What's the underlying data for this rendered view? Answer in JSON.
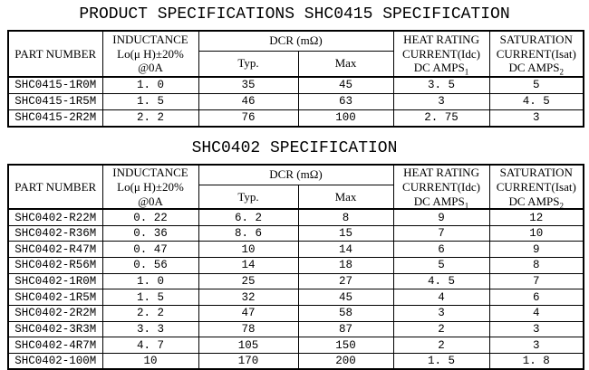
{
  "tables": [
    {
      "title": "PRODUCT SPECIFICATIONS SHC0415 SPECIFICATION",
      "headers": {
        "part_number": "PART NUMBER",
        "inductance_lines": [
          "INDUCTANCE",
          "Lo(μ H)±20%",
          "@0A"
        ],
        "dcr": "DCR (mΩ)",
        "typ": "Typ.",
        "max": "Max",
        "heat_lines": [
          "HEAT RATING",
          "CURRENT(Idc)"
        ],
        "heat_amps": "DC AMPS",
        "heat_amps_sub": "1",
        "sat_lines": [
          "SATURATION",
          "CURRENT(Isat)"
        ],
        "sat_amps": "DC AMPS",
        "sat_amps_sub": "2"
      },
      "rows": [
        [
          "SHC0415-1R0M",
          "1. 0",
          "35",
          "45",
          "3. 5",
          "5"
        ],
        [
          "SHC0415-1R5M",
          "1. 5",
          "46",
          "63",
          "3",
          "4. 5"
        ],
        [
          "SHC0415-2R2M",
          "2. 2",
          "76",
          "100",
          "2. 75",
          "3"
        ]
      ]
    },
    {
      "title": "SHC0402 SPECIFICATION",
      "headers": {
        "part_number": "PART NUMBER",
        "inductance_lines": [
          "INDUCTANCE",
          "Lo(μ H)±20%",
          "@0A"
        ],
        "dcr": "DCR (mΩ)",
        "typ": "Typ.",
        "max": "Max",
        "heat_lines": [
          "HEAT RATING",
          "CURRENT(Idc)"
        ],
        "heat_amps": "DC AMPS",
        "heat_amps_sub": "1",
        "sat_lines": [
          "SATURATION",
          "CURRENT(Isat)"
        ],
        "sat_amps": "DC AMPS",
        "sat_amps_sub": "2"
      },
      "rows": [
        [
          "SHC0402-R22M",
          "0. 22",
          "6. 2",
          "8",
          "9",
          "12"
        ],
        [
          "SHC0402-R36M",
          "0. 36",
          "8. 6",
          "15",
          "7",
          "10"
        ],
        [
          "SHC0402-R47M",
          "0. 47",
          "10",
          "14",
          "6",
          "9"
        ],
        [
          "SHC0402-R56M",
          "0. 56",
          "14",
          "18",
          "5",
          "8"
        ],
        [
          "SHC0402-1R0M",
          "1. 0",
          "25",
          "27",
          "4. 5",
          "7"
        ],
        [
          "SHC0402-1R5M",
          "1. 5",
          "32",
          "45",
          "4",
          "6"
        ],
        [
          "SHC0402-2R2M",
          "2. 2",
          "47",
          "58",
          "3",
          "4"
        ],
        [
          "SHC0402-3R3M",
          "3. 3",
          "78",
          "87",
          "2",
          "3"
        ],
        [
          "SHC0402-4R7M",
          "4. 7",
          "105",
          "150",
          "2",
          "3"
        ],
        [
          "SHC0402-100M",
          "10",
          "170",
          "200",
          "1. 5",
          "1. 8"
        ]
      ]
    }
  ]
}
